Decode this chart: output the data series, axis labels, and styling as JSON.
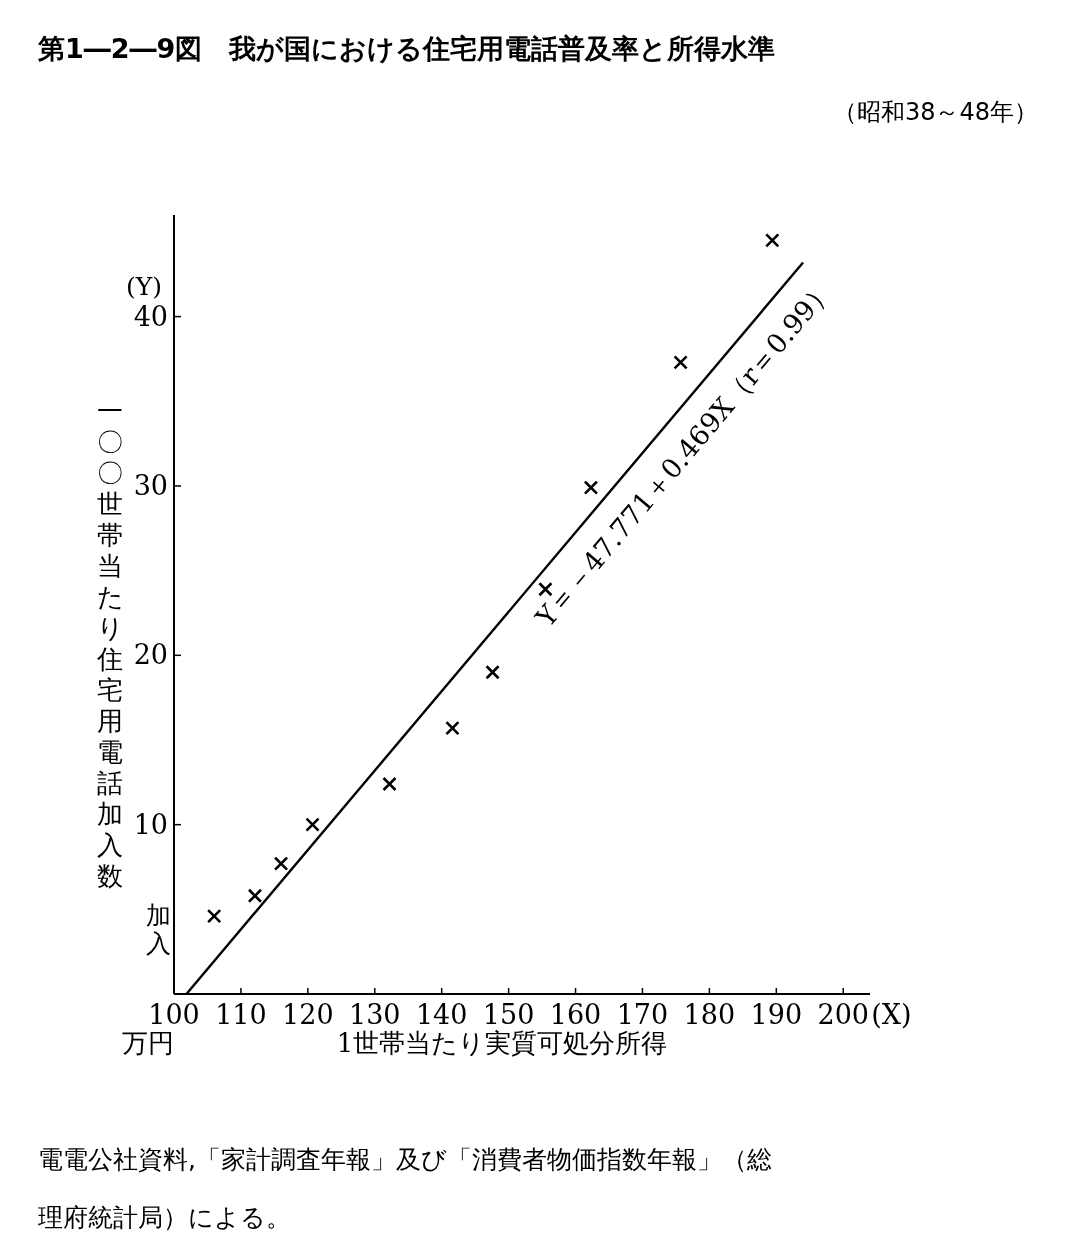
{
  "chart_data": {
    "type": "scatter",
    "title": "第1―2―9図　我が国における住宅用電話普及率と所得水準",
    "subtitle": "（昭和38～48年）",
    "xlabel": "1世帯当たり実質可処分所得",
    "ylabel": "一〇〇世帯当たり住宅用電話加入数",
    "xlim": [
      100,
      204
    ],
    "ylim": [
      0,
      46
    ],
    "xticks": [
      100,
      110,
      120,
      130,
      140,
      150,
      160,
      170,
      180,
      190,
      200
    ],
    "yticks": [
      10,
      20,
      30,
      40
    ],
    "marker": "cross",
    "series": [
      {
        "color": "#000000",
        "x": [
          106.0,
          112.1,
          116.0,
          120.7,
          132.2,
          141.6,
          147.6,
          155.5,
          162.3,
          175.7,
          189.4
        ],
        "values": [
          4.6,
          5.8,
          7.7,
          10.0,
          12.4,
          15.7,
          19.0,
          23.9,
          29.9,
          37.3,
          44.5
        ]
      },
      {
        "type": "line",
        "color": "#000000",
        "marker": "none",
        "line_style": "solid",
        "x": [
          101.86,
          194
        ],
        "values": [
          0,
          43.2
        ]
      }
    ],
    "annotations": [
      "(Y)",
      "加入",
      "万円",
      "(X)",
      {
        "text": "Y＝－47.771＋0.469X（r＝0.99）",
        "x": 172,
        "y": 33
      },
      "電電公社資料,「家計調査年報」及び「消費者物価指数年報」（総理府統計局）による。"
    ]
  }
}
